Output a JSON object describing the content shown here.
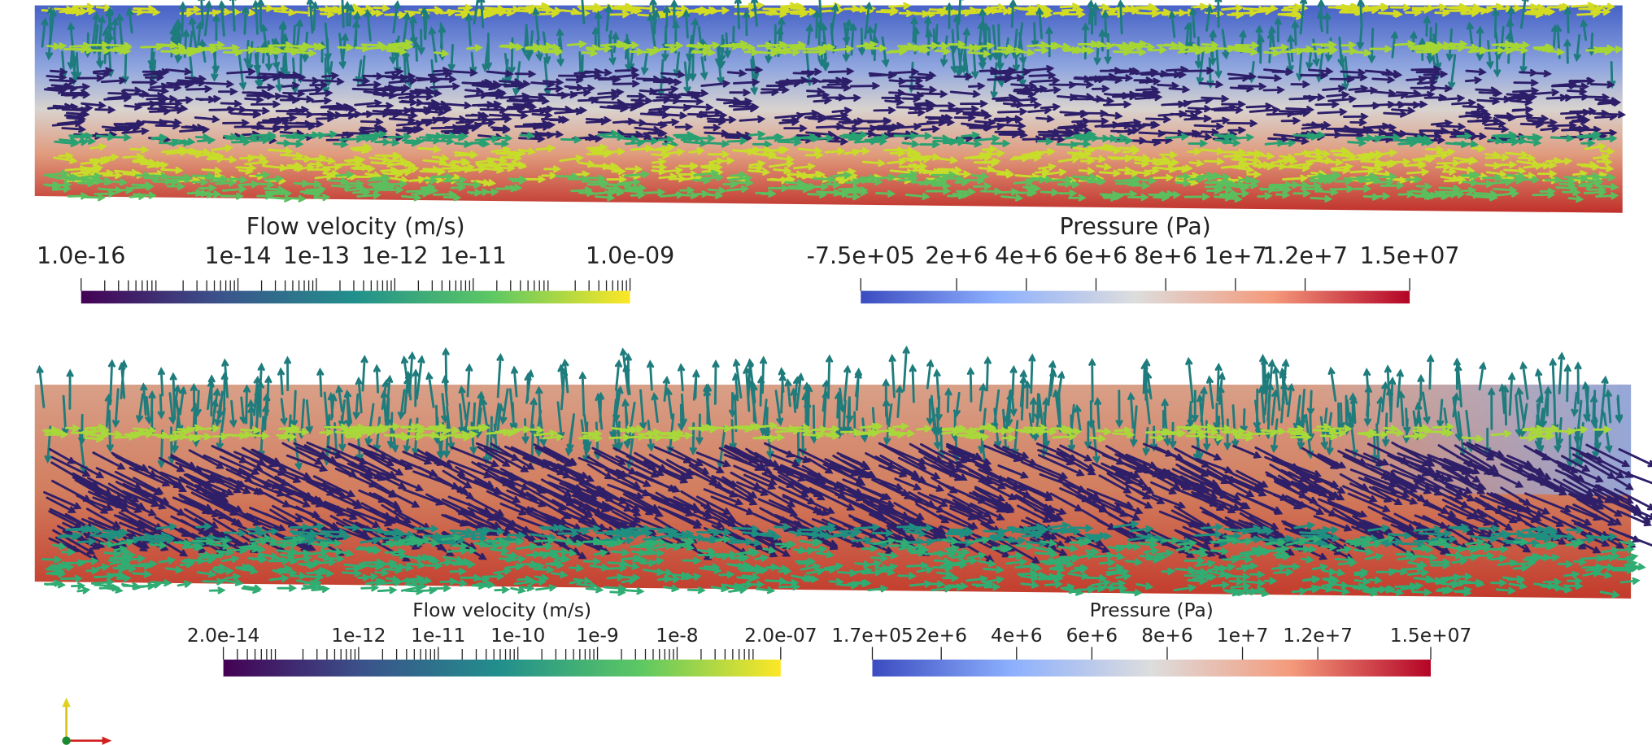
{
  "panels": [
    {
      "velocity_legend": {
        "title": "Flow velocity (m/s)",
        "labels": [
          "1.0e-16",
          "1e-14",
          "1e-13",
          "1e-12",
          "1e-11",
          "1.0e-09"
        ]
      },
      "pressure_legend": {
        "title": "Pressure (Pa)",
        "labels": [
          "-7.5e+05",
          "2e+6",
          "4e+6",
          "6e+6",
          "8e+6",
          "1e+7",
          "1.2e+7",
          "1.5e+07"
        ]
      }
    },
    {
      "velocity_legend": {
        "title": "Flow velocity (m/s)",
        "labels": [
          "2.0e-14",
          "1e-12",
          "1e-11",
          "1e-10",
          "1e-9",
          "1e-8",
          "2.0e-07"
        ]
      },
      "pressure_legend": {
        "title": "Pressure (Pa)",
        "labels": [
          "1.7e+05",
          "2e+6",
          "4e+6",
          "6e+6",
          "8e+6",
          "1e+7",
          "1.2e+7",
          "1.5e+07"
        ]
      }
    }
  ]
}
